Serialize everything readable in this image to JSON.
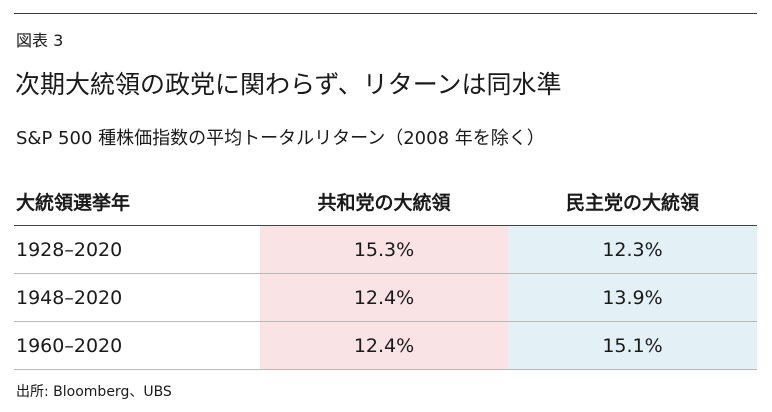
{
  "figure_label": "図表 3",
  "headline": "次期大統領の政党に関わらず、リターンは同水準",
  "subtitle": "S&P 500 種株価指数の平均トータルリターン（2008 年を除く）",
  "table": {
    "headers": {
      "period": "大統領選挙年",
      "republican": "共和党の大統領",
      "democrat": "民主党の大統領"
    },
    "rows": [
      {
        "period": "1928–2020",
        "republican": "15.3%",
        "democrat": "12.3%"
      },
      {
        "period": "1948–2020",
        "republican": "12.4%",
        "democrat": "13.9%"
      },
      {
        "period": "1960–2020",
        "republican": "12.4%",
        "democrat": "15.1%"
      }
    ]
  },
  "source": "出所: Bloomberg、UBS",
  "colors": {
    "republican_cell_bg": "#f9e3e4",
    "democrat_cell_bg": "#e3f1f7",
    "rule": "#3a3a3a"
  }
}
